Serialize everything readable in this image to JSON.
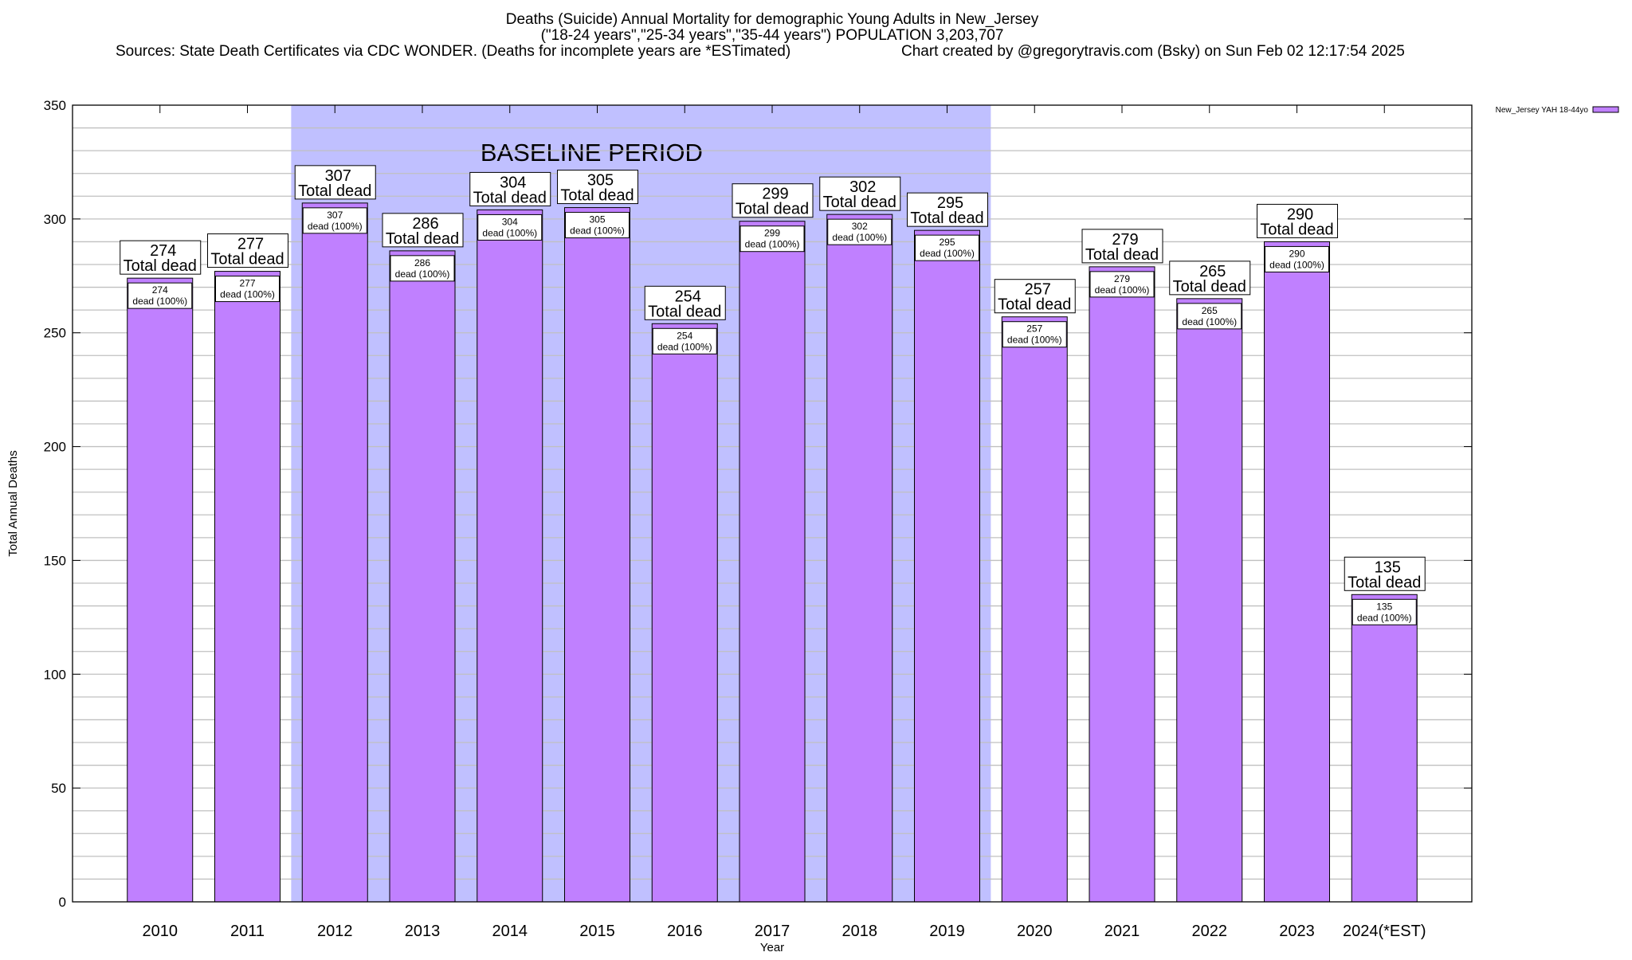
{
  "title_lines": [
    "Deaths (Suicide) Annual Mortality for demographic Young Adults in New_Jersey",
    "(\"18-24 years\",\"25-34 years\",\"35-44 years\") POPULATION 3,203,707"
  ],
  "sources": "Sources: State Death Certificates via CDC WONDER. (Deaths for incomplete years are *ESTimated)",
  "credit": "Chart created by @gregorytravis.com (Bsky) on Sun Feb 02 12:17:54 2025",
  "chart_data": {
    "type": "bar",
    "xlabel": "Year",
    "ylabel": "Total Annual Deaths",
    "ylim": [
      0,
      350
    ],
    "yticks": [
      0,
      50,
      100,
      150,
      200,
      250,
      300,
      350
    ],
    "grid": true,
    "legend_position": "right",
    "categories": [
      "2010",
      "2011",
      "2012",
      "2013",
      "2014",
      "2015",
      "2016",
      "2017",
      "2018",
      "2019",
      "2020",
      "2021",
      "2022",
      "2023",
      "2024(*EST)"
    ],
    "series": [
      {
        "name": "New_Jersey YAH 18-44yo",
        "color": "#c080ff",
        "values": [
          274,
          277,
          307,
          286,
          304,
          305,
          254,
          299,
          302,
          295,
          257,
          279,
          265,
          290,
          135
        ]
      }
    ],
    "total_label": "Total dead",
    "inner_label": "dead (100%)",
    "baseline_band": {
      "label": "BASELINE PERIOD",
      "from": "2012",
      "to": "2019",
      "color": "#c0c0ff"
    }
  }
}
